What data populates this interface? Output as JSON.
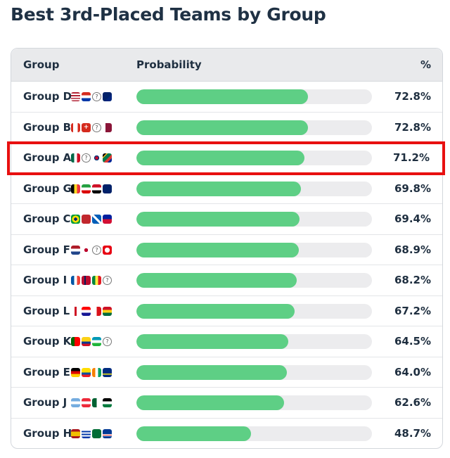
{
  "title": "Best 3rd-Placed Teams by Group",
  "table": {
    "headers": {
      "group": "Group",
      "probability": "Probability",
      "percent": "%"
    },
    "bar_color": "#5ecf85",
    "track_color": "#ececee",
    "highlight_color": "#e81010",
    "rows": [
      {
        "label": "Group D",
        "value": 72.8,
        "display": "72.8%",
        "flags": [
          "usa",
          "paraguay",
          "unknown",
          "australia"
        ]
      },
      {
        "label": "Group B",
        "value": 72.8,
        "display": "72.8%",
        "flags": [
          "canada",
          "switzerland",
          "unknown",
          "qatar"
        ]
      },
      {
        "label": "Group A",
        "value": 71.2,
        "display": "71.2%",
        "flags": [
          "mexico",
          "unknown",
          "korea",
          "south-africa"
        ],
        "highlighted": true
      },
      {
        "label": "Group G",
        "value": 69.8,
        "display": "69.8%",
        "flags": [
          "belgium",
          "iran",
          "egypt",
          "new-zealand"
        ]
      },
      {
        "label": "Group C",
        "value": 69.4,
        "display": "69.4%",
        "flags": [
          "brazil",
          "morocco",
          "scotland",
          "haiti"
        ]
      },
      {
        "label": "Group F",
        "value": 68.9,
        "display": "68.9%",
        "flags": [
          "netherlands",
          "japan",
          "unknown",
          "tunisia"
        ]
      },
      {
        "label": "Group I",
        "value": 68.2,
        "display": "68.2%",
        "flags": [
          "france",
          "norway",
          "senegal",
          "unknown"
        ]
      },
      {
        "label": "Group L",
        "value": 67.2,
        "display": "67.2%",
        "flags": [
          "england",
          "croatia",
          "panama",
          "ghana"
        ]
      },
      {
        "label": "Group K",
        "value": 64.5,
        "display": "64.5%",
        "flags": [
          "portugal",
          "colombia",
          "uzbekistan",
          "unknown"
        ]
      },
      {
        "label": "Group E",
        "value": 64.0,
        "display": "64.0%",
        "flags": [
          "germany",
          "ecuador",
          "ivory-coast",
          "curacao"
        ]
      },
      {
        "label": "Group J",
        "value": 62.6,
        "display": "62.6%",
        "flags": [
          "argentina",
          "austria",
          "algeria",
          "jordan"
        ]
      },
      {
        "label": "Group H",
        "value": 48.7,
        "display": "48.7%",
        "flags": [
          "spain",
          "uruguay",
          "saudi-arabia",
          "cape-verde"
        ]
      }
    ]
  }
}
